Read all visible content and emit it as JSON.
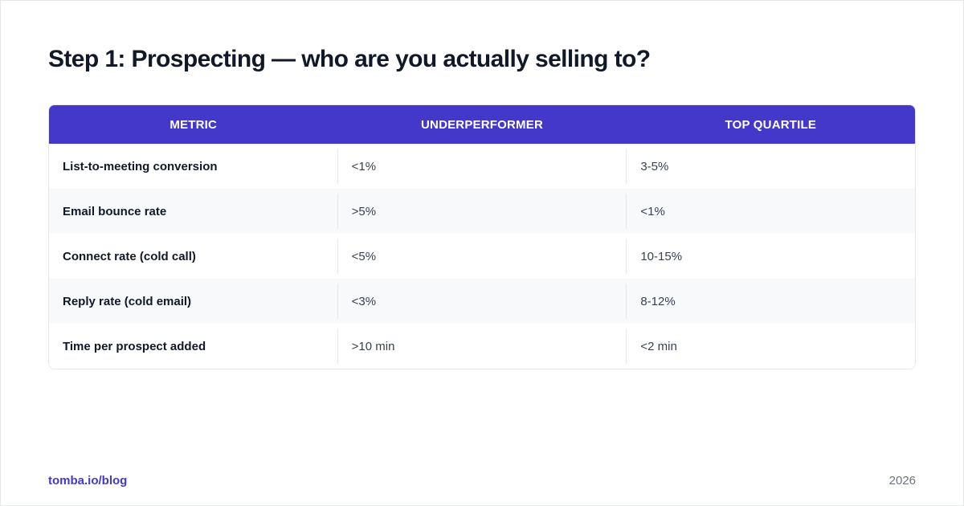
{
  "title": "Step 1: Prospecting — who are you actually selling to?",
  "table": {
    "headers": [
      "METRIC",
      "UNDERPERFORMER",
      "TOP QUARTILE"
    ],
    "rows": [
      [
        "List-to-meeting conversion",
        "<1%",
        "3-5%"
      ],
      [
        "Email bounce rate",
        ">5%",
        "<1%"
      ],
      [
        "Connect rate (cold call)",
        "<5%",
        "10-15%"
      ],
      [
        "Reply rate (cold email)",
        "<3%",
        "8-12%"
      ],
      [
        "Time per prospect added",
        ">10 min",
        "<2 min"
      ]
    ]
  },
  "footer": {
    "source": "tomba.io/blog",
    "year": "2026"
  },
  "colors": {
    "header_bg": "#4338ca",
    "accent": "#4338ca",
    "stripe": "#f8f9fb"
  }
}
